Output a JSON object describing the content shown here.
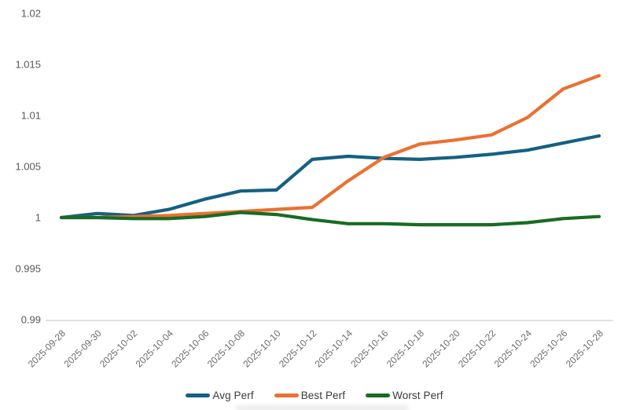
{
  "chart_data": {
    "type": "line",
    "title": "",
    "categories": [
      "2025-09-28",
      "2025-09-30",
      "2025-10-02",
      "2025-10-04",
      "2025-10-06",
      "2025-10-08",
      "2025-10-10",
      "2025-10-12",
      "2025-10-14",
      "2025-10-16",
      "2025-10-18",
      "2025-10-20",
      "2025-10-22",
      "2025-10-24",
      "2025-10-26",
      "2025-10-28"
    ],
    "series": [
      {
        "name": "Avg Perf",
        "color": "#156082",
        "values": [
          1.0,
          1.0004,
          1.0002,
          1.0008,
          1.0018,
          1.0026,
          1.0027,
          1.0057,
          1.006,
          1.0058,
          1.0057,
          1.0059,
          1.0062,
          1.0066,
          1.0073,
          1.008
        ]
      },
      {
        "name": "Best Perf",
        "color": "#E97132",
        "values": [
          1.0,
          1.0,
          1.0001,
          1.0002,
          1.0004,
          1.0006,
          1.0008,
          1.001,
          1.0036,
          1.0059,
          1.0072,
          1.0076,
          1.0081,
          1.0098,
          1.0126,
          1.0139
        ]
      },
      {
        "name": "Worst Perf",
        "color": "#196B24",
        "values": [
          1.0,
          1.0,
          0.9999,
          0.9999,
          1.0001,
          1.0005,
          1.0003,
          0.9998,
          0.9994,
          0.9994,
          0.9993,
          0.9993,
          0.9993,
          0.9995,
          0.9999,
          1.0001
        ]
      }
    ],
    "x_axis": {
      "label_rotation_deg": -45
    },
    "y_axis": {
      "min": 0.99,
      "max": 1.02,
      "tick_step": 0.005,
      "tick_labels": [
        "0.99",
        "0.995",
        "1",
        "1.005",
        "1.01",
        "1.015",
        "1.02"
      ]
    },
    "legend": {
      "position": "bottom",
      "items": [
        "Avg Perf",
        "Best Perf",
        "Worst Perf"
      ]
    },
    "grid": false,
    "styles": {
      "background": "#ffffff",
      "axis_line_color": "#d9d9d9",
      "y_tick_label_color": "#595959",
      "x_tick_label_color": "#6b6b6b",
      "legend_text_color": "#3a3a3a"
    }
  }
}
